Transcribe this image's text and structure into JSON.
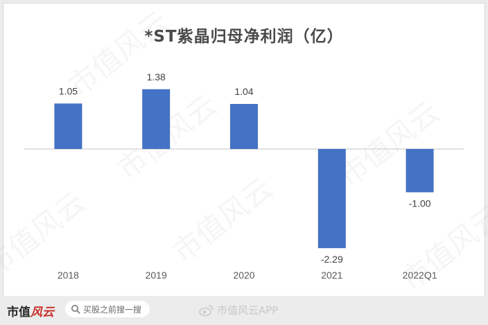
{
  "chart_data": {
    "type": "bar",
    "title": "*ST紫晶归母净利润（亿）",
    "categories": [
      "2018",
      "2019",
      "2020",
      "2021",
      "2022Q1"
    ],
    "values": [
      1.05,
      1.38,
      1.04,
      -2.29,
      -1.0
    ],
    "value_labels": [
      "1.05",
      "1.38",
      "1.04",
      "-2.29",
      "-1.00"
    ],
    "color": "#4472c4",
    "grid": false,
    "legend": "none",
    "ylim": [
      -2.4,
      2.4
    ]
  },
  "watermark": "市值风云",
  "footer": {
    "brand_left": "市值",
    "brand_right": "风云",
    "search_placeholder": "买股之前搜一搜",
    "weibo_text": "市值风云APP",
    "icon_names": [
      "search-icon",
      "weibo-icon"
    ]
  },
  "colors": {
    "bar": "#4472c4",
    "brand_red": "#c8302c"
  }
}
